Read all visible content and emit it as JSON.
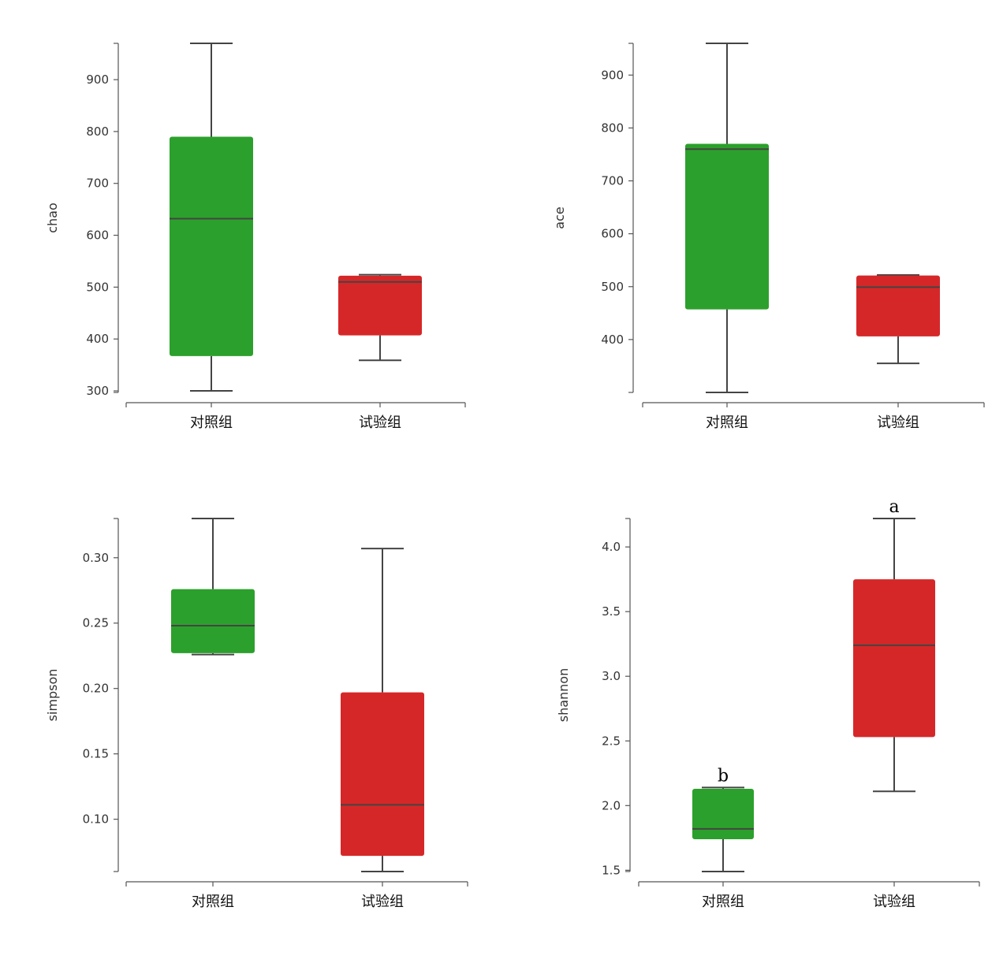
{
  "chart_data": [
    {
      "type": "box",
      "ylabel": "chao",
      "categories": [
        "对照组",
        "试验组"
      ],
      "yticks": [
        300,
        400,
        500,
        600,
        700,
        800,
        900
      ],
      "ylim": [
        297,
        970
      ],
      "colors": [
        "#2ca02c",
        "#d62728"
      ],
      "boxes": [
        {
          "min": 300,
          "q1": 367,
          "median": 632,
          "q3": 790,
          "max": 970,
          "label": ""
        },
        {
          "min": 359,
          "q1": 407,
          "median": 510,
          "q3": 522,
          "max": 524,
          "label": ""
        }
      ]
    },
    {
      "type": "box",
      "ylabel": "ace",
      "categories": [
        "对照组",
        "试验组"
      ],
      "yticks": [
        400,
        500,
        600,
        700,
        800,
        900
      ],
      "ylim": [
        300,
        960
      ],
      "colors": [
        "#2ca02c",
        "#d62728"
      ],
      "boxes": [
        {
          "min": 300,
          "q1": 457,
          "median": 760,
          "q3": 770,
          "max": 960,
          "label": ""
        },
        {
          "min": 355,
          "q1": 406,
          "median": 499,
          "q3": 521,
          "max": 522,
          "label": ""
        }
      ]
    },
    {
      "type": "box",
      "ylabel": "simpson",
      "categories": [
        "对照组",
        "试验组"
      ],
      "yticks": [
        0.1,
        0.15,
        0.2,
        0.25,
        0.3
      ],
      "yticklabels": [
        "0.10",
        "0.15",
        "0.20",
        "0.25",
        "0.30"
      ],
      "ylim": [
        0.06,
        0.33
      ],
      "colors": [
        "#2ca02c",
        "#d62728"
      ],
      "boxes": [
        {
          "min": 0.226,
          "q1": 0.227,
          "median": 0.248,
          "q3": 0.276,
          "max": 0.33,
          "label": ""
        },
        {
          "min": 0.06,
          "q1": 0.072,
          "median": 0.111,
          "q3": 0.197,
          "max": 0.307,
          "label": ""
        }
      ]
    },
    {
      "type": "box",
      "ylabel": "shannon",
      "categories": [
        "对照组",
        "试验组"
      ],
      "yticks": [
        1.5,
        2.0,
        2.5,
        3.0,
        3.5,
        4.0
      ],
      "yticklabels": [
        "1.5",
        "2.0",
        "2.5",
        "3.0",
        "3.5",
        "4.0"
      ],
      "ylim": [
        1.49,
        4.22
      ],
      "colors": [
        "#2ca02c",
        "#d62728"
      ],
      "boxes": [
        {
          "min": 1.49,
          "q1": 1.74,
          "median": 1.82,
          "q3": 2.13,
          "max": 2.14,
          "label": "b"
        },
        {
          "min": 2.11,
          "q1": 2.53,
          "median": 3.24,
          "q3": 3.75,
          "max": 4.22,
          "label": "a"
        }
      ]
    }
  ]
}
